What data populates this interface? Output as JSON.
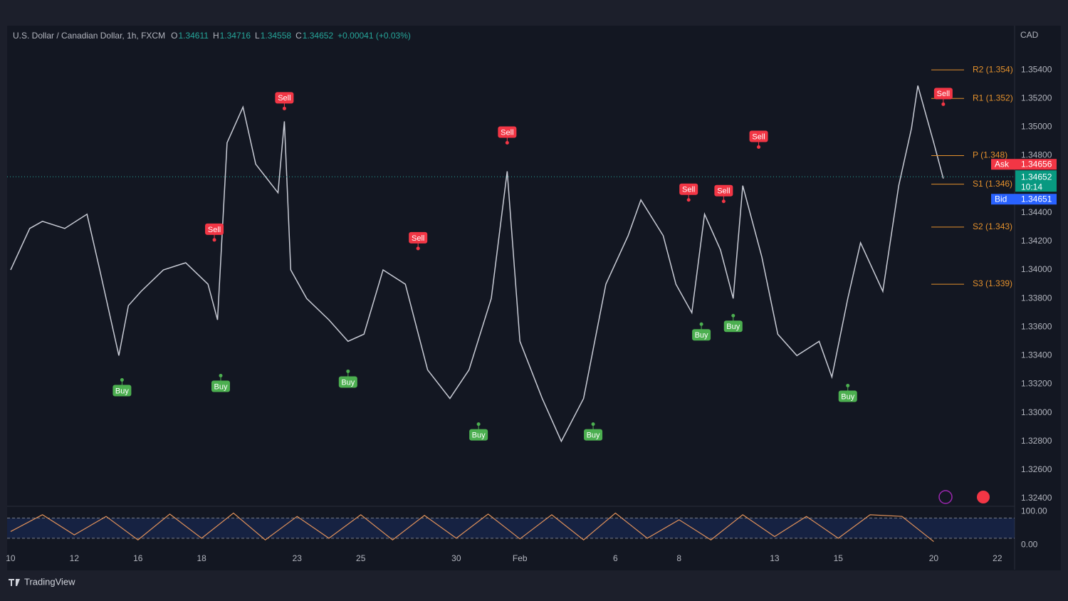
{
  "chart_data": {
    "type": "line",
    "header": {
      "symbol": "U.S. Dollar / Canadian Dollar, 1h, FXCM",
      "ohlc": [
        {
          "key": "O",
          "value": "1.34611"
        },
        {
          "key": "H",
          "value": "1.34716"
        },
        {
          "key": "L",
          "value": "1.34558"
        },
        {
          "key": "C",
          "value": "1.34652"
        }
      ],
      "change": "+0.00041 (+0.03%)"
    },
    "currency": "CAD",
    "color": "#c9ccd6",
    "x": [
      0,
      0.6,
      1.0,
      1.7,
      2.4,
      2.8,
      3.4,
      3.7,
      4.1,
      4.8,
      5.5,
      6.2,
      6.5,
      6.8,
      7.3,
      7.7,
      8.4,
      8.6,
      8.8,
      9.3,
      10.0,
      10.6,
      11.1,
      11.7,
      12.4,
      13.1,
      13.8,
      14.4,
      15.1,
      15.6,
      16.0,
      16.7,
      17.3,
      18.0,
      18.7,
      19.4,
      19.8,
      20.5,
      20.9,
      21.4,
      21.8,
      22.3,
      22.7,
      23.0,
      23.6,
      24.1,
      24.7,
      25.4,
      25.8,
      26.3,
      26.7,
      27.4,
      27.9,
      28.3,
      28.5,
      29.0,
      29.3
    ],
    "values": [
      1.34,
      1.3429,
      1.3434,
      1.3429,
      1.3439,
      1.34,
      1.334,
      1.3375,
      1.3385,
      1.34,
      1.3405,
      1.339,
      1.3365,
      1.3489,
      1.3514,
      1.3474,
      1.3454,
      1.3504,
      1.34,
      1.338,
      1.3365,
      1.335,
      1.3355,
      1.34,
      1.339,
      1.333,
      1.331,
      1.333,
      1.338,
      1.3469,
      1.335,
      1.331,
      1.328,
      1.331,
      1.339,
      1.3424,
      1.3449,
      1.3424,
      1.339,
      1.337,
      1.3439,
      1.3414,
      1.338,
      1.3459,
      1.3409,
      1.3355,
      1.334,
      1.335,
      1.3325,
      1.338,
      1.3419,
      1.3385,
      1.3459,
      1.3499,
      1.3529,
      1.3489,
      1.3464
    ],
    "xlim": [
      -0.11,
      31.54
    ],
    "ylim": [
      1.3235,
      1.357
    ],
    "xticks": [
      {
        "value": 0,
        "label": "10"
      },
      {
        "value": 2,
        "label": "12"
      },
      {
        "value": 4,
        "label": "16"
      },
      {
        "value": 6,
        "label": "18"
      },
      {
        "value": 9,
        "label": "23"
      },
      {
        "value": 11,
        "label": "25"
      },
      {
        "value": 14,
        "label": "30"
      },
      {
        "value": 16,
        "label": "Feb"
      },
      {
        "value": 19,
        "label": "6"
      },
      {
        "value": 21,
        "label": "8"
      },
      {
        "value": 24,
        "label": "13"
      },
      {
        "value": 26,
        "label": "15"
      },
      {
        "value": 29,
        "label": "20"
      },
      {
        "value": 31,
        "label": "22"
      }
    ],
    "yticks": [
      {
        "value": 1.324,
        "label": "1.32400"
      },
      {
        "value": 1.326,
        "label": "1.32600"
      },
      {
        "value": 1.328,
        "label": "1.32800"
      },
      {
        "value": 1.33,
        "label": "1.33000"
      },
      {
        "value": 1.332,
        "label": "1.33200"
      },
      {
        "value": 1.334,
        "label": "1.33400"
      },
      {
        "value": 1.336,
        "label": "1.33600"
      },
      {
        "value": 1.338,
        "label": "1.33800"
      },
      {
        "value": 1.34,
        "label": "1.34000"
      },
      {
        "value": 1.342,
        "label": "1.34200"
      },
      {
        "value": 1.344,
        "label": "1.34400"
      },
      {
        "value": 1.348,
        "label": "1.34800"
      },
      {
        "value": 1.35,
        "label": "1.35000"
      },
      {
        "value": 1.352,
        "label": "1.35200"
      },
      {
        "value": 1.354,
        "label": "1.35400"
      }
    ],
    "grid": false,
    "signals": [
      {
        "label": "Buy",
        "x": 3.5,
        "price": 1.3323,
        "color": "#4caf50"
      },
      {
        "label": "Buy",
        "x": 6.6,
        "price": 1.3326,
        "color": "#4caf50"
      },
      {
        "label": "Buy",
        "x": 10.6,
        "price": 1.3329,
        "color": "#4caf50"
      },
      {
        "label": "Buy",
        "x": 14.7,
        "price": 1.3292,
        "color": "#4caf50"
      },
      {
        "label": "Buy",
        "x": 18.3,
        "price": 1.3292,
        "color": "#4caf50"
      },
      {
        "label": "Buy",
        "x": 21.7,
        "price": 1.3362,
        "color": "#4caf50"
      },
      {
        "label": "Buy",
        "x": 22.7,
        "price": 1.3368,
        "color": "#4caf50"
      },
      {
        "label": "Buy",
        "x": 26.3,
        "price": 1.3319,
        "color": "#4caf50"
      },
      {
        "label": "Sell",
        "x": 6.4,
        "price": 1.3421,
        "color": "#f23645"
      },
      {
        "label": "Sell",
        "x": 8.6,
        "price": 1.3513,
        "color": "#f23645"
      },
      {
        "label": "Sell",
        "x": 12.8,
        "price": 1.3415,
        "color": "#f23645"
      },
      {
        "label": "Sell",
        "x": 15.6,
        "price": 1.3489,
        "color": "#f23645"
      },
      {
        "label": "Sell",
        "x": 21.3,
        "price": 1.3449,
        "color": "#f23645"
      },
      {
        "label": "Sell",
        "x": 22.4,
        "price": 1.3448,
        "color": "#f23645"
      },
      {
        "label": "Sell",
        "x": 23.5,
        "price": 1.3486,
        "color": "#f23645"
      },
      {
        "label": "Sell",
        "x": 29.3,
        "price": 1.3516,
        "color": "#f23645"
      }
    ],
    "pivots": [
      {
        "label": "R2 (1.354)",
        "value": 1.354
      },
      {
        "label": "R1 (1.352)",
        "value": 1.352
      },
      {
        "label": "P (1.348)",
        "value": 1.348
      },
      {
        "label": "S1 (1.346)",
        "value": 1.346
      },
      {
        "label": "S2 (1.343)",
        "value": 1.343
      },
      {
        "label": "S3 (1.339)",
        "value": 1.339
      }
    ],
    "pivot_color": "#e3902c",
    "quote": {
      "ask_label": "Ask",
      "ask": 1.34656,
      "last": 1.34652,
      "countdown": "10:14",
      "bid_label": "Bid",
      "bid": 1.34651
    },
    "oscillator": {
      "color": "#e0915a",
      "x": [
        0,
        1,
        2,
        3,
        4,
        5,
        6,
        7,
        8,
        9,
        10,
        11,
        12,
        13,
        14,
        15,
        16,
        17,
        18,
        19,
        20,
        21,
        22,
        23,
        24,
        25,
        26,
        27,
        28,
        29
      ],
      "values": [
        40,
        90,
        30,
        85,
        15,
        92,
        20,
        95,
        15,
        85,
        20,
        90,
        15,
        88,
        20,
        92,
        18,
        90,
        15,
        95,
        20,
        75,
        15,
        90,
        25,
        85,
        20,
        90,
        85,
        10
      ],
      "ylim": [
        -10,
        113
      ],
      "yticks": [
        {
          "value": 100,
          "label": "100.00"
        },
        {
          "value": 0,
          "label": "0.00"
        }
      ],
      "bands": [
        20,
        80
      ]
    },
    "brand": "TradingView"
  }
}
